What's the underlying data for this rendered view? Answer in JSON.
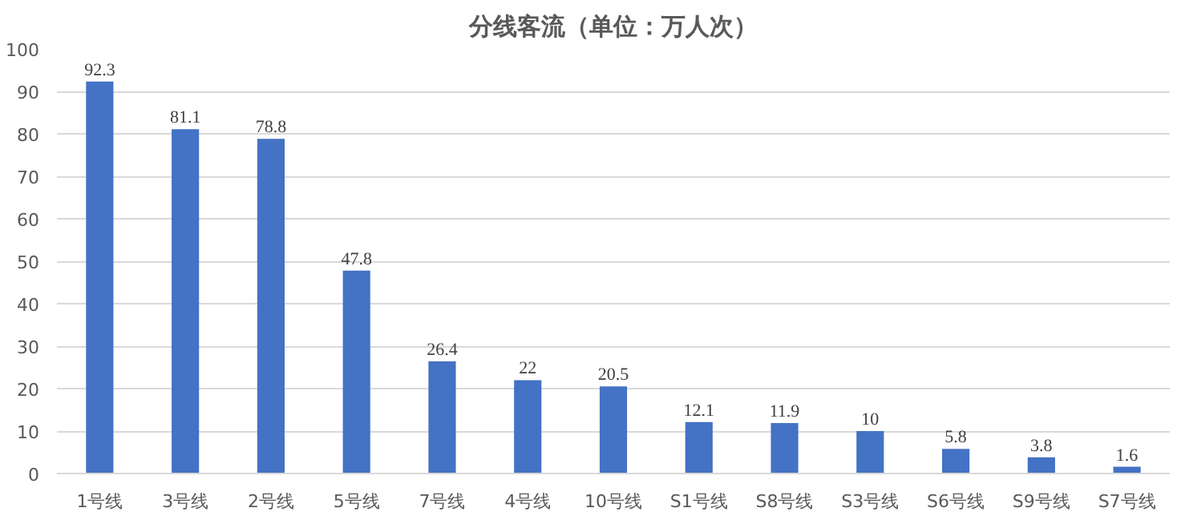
{
  "chart_data": {
    "type": "bar",
    "title": "分线客流（单位：万人次）",
    "categories": [
      "1号线",
      "3号线",
      "2号线",
      "5号线",
      "7号线",
      "4号线",
      "10号线",
      "S1号线",
      "S8号线",
      "S3号线",
      "S6号线",
      "S9号线",
      "S7号线"
    ],
    "values": [
      92.3,
      81.1,
      78.8,
      47.8,
      26.4,
      22,
      20.5,
      12.1,
      11.9,
      10,
      5.8,
      3.8,
      1.6
    ],
    "color": "#4472c4",
    "ylim": [
      0,
      100
    ],
    "yticks": [
      0,
      10,
      20,
      30,
      40,
      50,
      60,
      70,
      80,
      90,
      100
    ],
    "grid": "y",
    "data_labels": true
  }
}
